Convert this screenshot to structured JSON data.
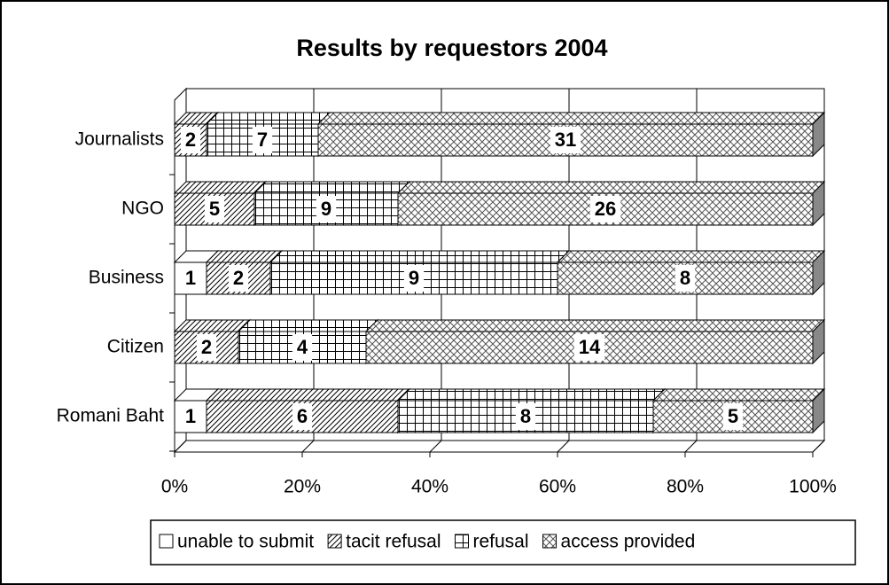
{
  "chart_data": {
    "type": "bar",
    "orientation": "horizontal",
    "stacking": "percent",
    "title": "Results by requestors 2004",
    "categories": [
      "Journalists",
      "NGO",
      "Business",
      "Citizen",
      "Romani Baht"
    ],
    "series": [
      {
        "name": "unable to submit",
        "color": "#ffffff",
        "pattern": "none",
        "values": [
          0,
          0,
          1,
          0,
          1
        ]
      },
      {
        "name": "tacit refusal",
        "color": "#ffffff",
        "pattern": "diagonal",
        "values": [
          2,
          5,
          2,
          2,
          6
        ]
      },
      {
        "name": "refusal",
        "color": "#ffffff",
        "pattern": "grid",
        "values": [
          7,
          9,
          9,
          4,
          8
        ]
      },
      {
        "name": "access provided",
        "color": "#ffffff",
        "pattern": "cross",
        "values": [
          31,
          26,
          8,
          14,
          5
        ]
      }
    ],
    "xlim": [
      0,
      100
    ],
    "xticks": [
      {
        "value": 0,
        "label": "0%"
      },
      {
        "value": 20,
        "label": "20%"
      },
      {
        "value": 40,
        "label": "40%"
      },
      {
        "value": 60,
        "label": "60%"
      },
      {
        "value": 80,
        "label": "80%"
      },
      {
        "value": 100,
        "label": "100%"
      }
    ],
    "grid": true,
    "legend": "bottom"
  }
}
